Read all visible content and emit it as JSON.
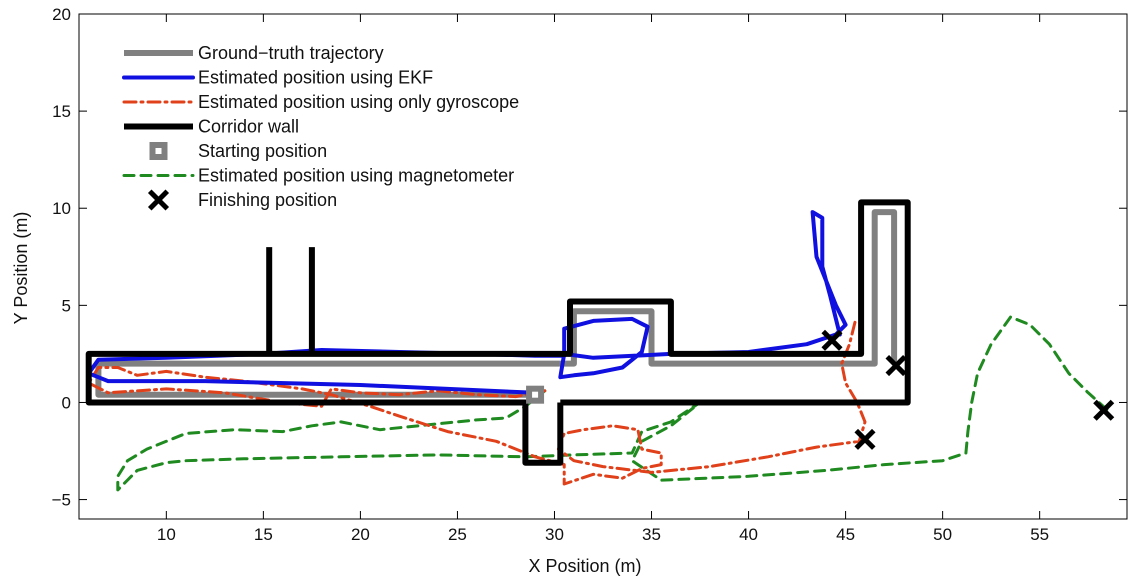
{
  "chart_data": {
    "type": "line",
    "xlabel": "X Position (m)",
    "ylabel": "Y Position (m)",
    "xlim": [
      5.5,
      59.5
    ],
    "ylim": [
      -6,
      20
    ],
    "xticks": [
      10,
      15,
      20,
      25,
      30,
      35,
      40,
      45,
      50,
      55
    ],
    "yticks": [
      -5,
      0,
      5,
      10,
      15,
      20
    ],
    "xtick_labels": [
      "10",
      "15",
      "20",
      "25",
      "30",
      "35",
      "40",
      "45",
      "50",
      "55"
    ],
    "ytick_labels": [
      "−5",
      "0",
      "5",
      "10",
      "15",
      "20"
    ],
    "grid": false,
    "legend_position": "top-left",
    "series": [
      {
        "name": "Ground−truth trajectory",
        "color": "#808080",
        "style": "solid-thick",
        "points": [
          [
            29,
            0.4
          ],
          [
            6.5,
            0.4
          ],
          [
            6.5,
            2
          ],
          [
            31,
            2
          ],
          [
            31,
            4.7
          ],
          [
            35,
            4.7
          ],
          [
            35,
            2
          ],
          [
            46.5,
            2
          ],
          [
            46.5,
            9.8
          ],
          [
            47.5,
            9.8
          ],
          [
            47.5,
            2
          ]
        ]
      },
      {
        "name": "Estimated position using EKF",
        "color": "#1010e0",
        "style": "solid",
        "points": [
          [
            29,
            0.5
          ],
          [
            20,
            0.9
          ],
          [
            12,
            1.1
          ],
          [
            7,
            1.1
          ],
          [
            6,
            1.5
          ],
          [
            6.5,
            2.2
          ],
          [
            10,
            2.3
          ],
          [
            15,
            2.5
          ],
          [
            18,
            2.7
          ],
          [
            22,
            2.6
          ],
          [
            26,
            2.5
          ],
          [
            29,
            2.4
          ],
          [
            30.5,
            2.4
          ],
          [
            30.5,
            3.8
          ],
          [
            32,
            4.2
          ],
          [
            34,
            4.3
          ],
          [
            34.8,
            3.9
          ],
          [
            34.5,
            2.6
          ],
          [
            33.5,
            1.8
          ],
          [
            32,
            1.5
          ],
          [
            31,
            1.4
          ],
          [
            30.3,
            1.3
          ],
          [
            30.5,
            2.5
          ],
          [
            32,
            2.3
          ],
          [
            36,
            2.5
          ],
          [
            40,
            2.6
          ],
          [
            43,
            3
          ],
          [
            44.5,
            3.5
          ],
          [
            45,
            4
          ],
          [
            44.5,
            5
          ],
          [
            43.5,
            7.5
          ],
          [
            43.3,
            9.8
          ],
          [
            43.8,
            9.5
          ],
          [
            43.8,
            7
          ],
          [
            44.2,
            5.5
          ],
          [
            44.7,
            3.5
          ]
        ]
      },
      {
        "name": "Estimated position using only gyroscope",
        "color": "#e0401a",
        "style": "dash-dot",
        "points": [
          [
            29.5,
            0.6
          ],
          [
            28,
            0.3
          ],
          [
            26,
            0.4
          ],
          [
            24,
            0.6
          ],
          [
            22,
            0.4
          ],
          [
            20,
            0.5
          ],
          [
            18.5,
            0.7
          ],
          [
            18,
            -0.2
          ],
          [
            16,
            0
          ],
          [
            13,
            0.5
          ],
          [
            10,
            0.7
          ],
          [
            7,
            0.5
          ],
          [
            6,
            1
          ],
          [
            6.5,
            1.8
          ],
          [
            7.5,
            1.8
          ],
          [
            8.5,
            1.4
          ],
          [
            10,
            1.6
          ],
          [
            12,
            1.3
          ],
          [
            14,
            1.1
          ],
          [
            15.5,
            0.9
          ],
          [
            17,
            0.7
          ],
          [
            18.5,
            0.4
          ],
          [
            20.5,
            -0.2
          ],
          [
            22,
            -0.7
          ],
          [
            24.5,
            -1.5
          ],
          [
            27,
            -2
          ],
          [
            29,
            -2.8
          ],
          [
            30.5,
            -3.2
          ],
          [
            30.5,
            -4.2
          ],
          [
            32,
            -3.7
          ],
          [
            33.5,
            -3.9
          ],
          [
            34.5,
            -3.4
          ],
          [
            35.5,
            -3.2
          ],
          [
            35.5,
            -2.6
          ],
          [
            34.5,
            -2.4
          ],
          [
            34.3,
            -1.4
          ],
          [
            33,
            -1.2
          ],
          [
            31.5,
            -1.4
          ],
          [
            30.5,
            -1.6
          ],
          [
            30.2,
            -2.4
          ],
          [
            31,
            -3
          ],
          [
            32.5,
            -3.3
          ],
          [
            35,
            -3.6
          ],
          [
            38,
            -3.3
          ],
          [
            41,
            -2.8
          ],
          [
            43.5,
            -2.3
          ],
          [
            45.7,
            -2
          ],
          [
            46,
            -1
          ],
          [
            45.6,
            0
          ],
          [
            45,
            1
          ],
          [
            44.8,
            2
          ],
          [
            45.2,
            3
          ],
          [
            45.5,
            4.2
          ]
        ]
      },
      {
        "name": "Corridor wall",
        "color": "#000000",
        "style": "solid-thick",
        "segments": [
          [
            [
              30.3,
              0
            ],
            [
              48.2,
              0
            ],
            [
              48.2,
              10.3
            ],
            [
              45.8,
              10.3
            ],
            [
              45.8,
              2.5
            ],
            [
              36,
              2.5
            ],
            [
              36,
              5.2
            ],
            [
              30.8,
              5.2
            ],
            [
              30.8,
              2.5
            ],
            [
              6,
              2.5
            ],
            [
              6,
              0
            ],
            [
              28.5,
              0
            ],
            [
              28.5,
              -3.1
            ],
            [
              30.3,
              -3.1
            ],
            [
              30.3,
              0
            ]
          ],
          [
            [
              15.3,
              2.5
            ],
            [
              15.3,
              8
            ]
          ],
          [
            [
              17.5,
              2.5
            ],
            [
              17.5,
              8
            ]
          ]
        ]
      },
      {
        "name": "Estimated position using magnetometer",
        "color": "#1f8a1f",
        "style": "dashed",
        "points": [
          [
            29.5,
            0.6
          ],
          [
            28.5,
            -0.2
          ],
          [
            27.5,
            -0.8
          ],
          [
            26,
            -0.9
          ],
          [
            24,
            -1.1
          ],
          [
            21,
            -1.4
          ],
          [
            19,
            -1
          ],
          [
            17.5,
            -1.2
          ],
          [
            16,
            -1.5
          ],
          [
            13.5,
            -1.4
          ],
          [
            11,
            -1.6
          ],
          [
            9,
            -2.4
          ],
          [
            8,
            -3
          ],
          [
            7.5,
            -3.8
          ],
          [
            7.5,
            -4.5
          ],
          [
            8.5,
            -3.5
          ],
          [
            10,
            -3.1
          ],
          [
            11,
            -3
          ],
          [
            14,
            -2.9
          ],
          [
            19,
            -2.8
          ],
          [
            24,
            -2.7
          ],
          [
            28.5,
            -2.8
          ],
          [
            31,
            -2.7
          ],
          [
            34,
            -2.6
          ],
          [
            34.5,
            -1.5
          ],
          [
            36,
            -1
          ],
          [
            37.5,
            0
          ],
          [
            36,
            -1.2
          ],
          [
            34.5,
            -2
          ],
          [
            34,
            -3
          ],
          [
            35.5,
            -4
          ],
          [
            40,
            -3.8
          ],
          [
            44,
            -3.5
          ],
          [
            47,
            -3.2
          ],
          [
            50,
            -3
          ],
          [
            51.2,
            -2.6
          ],
          [
            51.3,
            -1.5
          ],
          [
            51.5,
            0
          ],
          [
            51.8,
            1.5
          ],
          [
            52.5,
            3
          ],
          [
            53.5,
            4.4
          ],
          [
            54.5,
            4
          ],
          [
            55.5,
            3
          ],
          [
            56.5,
            1.5
          ],
          [
            57.5,
            0.5
          ],
          [
            58.5,
            -0.4
          ]
        ]
      }
    ],
    "markers": [
      {
        "name": "Starting position",
        "shape": "square",
        "color": "#808080",
        "points": [
          [
            29,
            0.4
          ]
        ]
      },
      {
        "name": "Finishing position",
        "shape": "x",
        "color": "#000000",
        "points": [
          [
            44.3,
            3.2
          ],
          [
            47.6,
            1.9
          ],
          [
            46,
            -1.9
          ],
          [
            58.3,
            -0.4
          ]
        ]
      }
    ],
    "legend": [
      {
        "label": "Ground−truth trajectory",
        "kind": "line",
        "color": "#808080",
        "style": "solid-thick"
      },
      {
        "label": "Estimated position using EKF",
        "kind": "line",
        "color": "#1010e0",
        "style": "solid"
      },
      {
        "label": "Estimated position using only gyroscope",
        "kind": "line",
        "color": "#e0401a",
        "style": "dash-dot"
      },
      {
        "label": "Corridor wall",
        "kind": "line",
        "color": "#000000",
        "style": "solid-thick"
      },
      {
        "label": "Starting position",
        "kind": "square",
        "color": "#808080",
        "style": ""
      },
      {
        "label": "Estimated position using magnetometer",
        "kind": "line",
        "color": "#1f8a1f",
        "style": "dashed"
      },
      {
        "label": "Finishing position",
        "kind": "x",
        "color": "#000000",
        "style": ""
      }
    ]
  }
}
